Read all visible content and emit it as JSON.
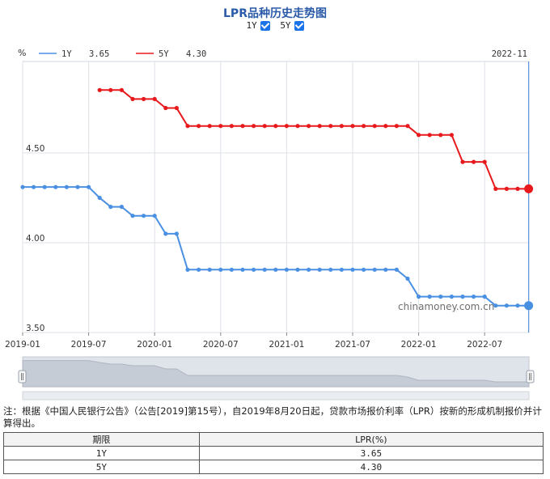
{
  "page": {
    "title": "LPR品种历史走势图",
    "toggles": [
      {
        "label": "1Y",
        "checked": true
      },
      {
        "label": "5Y",
        "checked": true
      }
    ],
    "note": "注：根据《中国人民银行公告》（公告[2019]第15号），自2019年8月20日起，贷款市场报价利率（LPR）按新的形成机制报价并计算得出。",
    "watermark": "chinamoney.com.cn"
  },
  "table": {
    "headers": [
      "期限",
      "LPR(%)"
    ],
    "rows": [
      [
        "1Y",
        "3.65"
      ],
      [
        "5Y",
        "4.30"
      ]
    ]
  },
  "chart_data": {
    "type": "line",
    "title": "LPR品种历史走势图",
    "unit": "%",
    "cursor_date": "2022-11",
    "ylim": [
      3.5,
      4.9
    ],
    "y_ticks": [
      "4.50",
      "4.00",
      "3.50"
    ],
    "x_ticks": [
      "2019-01",
      "2019-07",
      "2020-01",
      "2020-07",
      "2021-01",
      "2021-07",
      "2022-01",
      "2022-07"
    ],
    "legend": [
      {
        "name": "1Y",
        "value": "3.65",
        "color": "#4a90e2"
      },
      {
        "name": "5Y",
        "value": "4.30",
        "color": "#e8191c"
      }
    ],
    "x": [
      "2019-01",
      "2019-02",
      "2019-03",
      "2019-04",
      "2019-05",
      "2019-06",
      "2019-07",
      "2019-08",
      "2019-09",
      "2019-10",
      "2019-11",
      "2019-12",
      "2020-01",
      "2020-02",
      "2020-03",
      "2020-04",
      "2020-05",
      "2020-06",
      "2020-07",
      "2020-08",
      "2020-09",
      "2020-10",
      "2020-11",
      "2020-12",
      "2021-01",
      "2021-02",
      "2021-03",
      "2021-04",
      "2021-05",
      "2021-06",
      "2021-07",
      "2021-08",
      "2021-09",
      "2021-10",
      "2021-11",
      "2021-12",
      "2022-01",
      "2022-02",
      "2022-03",
      "2022-04",
      "2022-05",
      "2022-06",
      "2022-07",
      "2022-08",
      "2022-09",
      "2022-10",
      "2022-11"
    ],
    "series": [
      {
        "name": "1Y",
        "color": "#4a90e2",
        "values": [
          4.31,
          4.31,
          4.31,
          4.31,
          4.31,
          4.31,
          4.31,
          4.25,
          4.2,
          4.2,
          4.15,
          4.15,
          4.15,
          4.05,
          4.05,
          3.85,
          3.85,
          3.85,
          3.85,
          3.85,
          3.85,
          3.85,
          3.85,
          3.85,
          3.85,
          3.85,
          3.85,
          3.85,
          3.85,
          3.85,
          3.85,
          3.85,
          3.85,
          3.85,
          3.85,
          3.8,
          3.7,
          3.7,
          3.7,
          3.7,
          3.7,
          3.7,
          3.7,
          3.65,
          3.65,
          3.65,
          3.65
        ]
      },
      {
        "name": "5Y",
        "color": "#e8191c",
        "values": [
          null,
          null,
          null,
          null,
          null,
          null,
          null,
          4.85,
          4.85,
          4.85,
          4.8,
          4.8,
          4.8,
          4.75,
          4.75,
          4.65,
          4.65,
          4.65,
          4.65,
          4.65,
          4.65,
          4.65,
          4.65,
          4.65,
          4.65,
          4.65,
          4.65,
          4.65,
          4.65,
          4.65,
          4.65,
          4.65,
          4.65,
          4.65,
          4.65,
          4.65,
          4.6,
          4.6,
          4.6,
          4.6,
          4.45,
          4.45,
          4.45,
          4.3,
          4.3,
          4.3,
          4.3
        ]
      }
    ]
  }
}
